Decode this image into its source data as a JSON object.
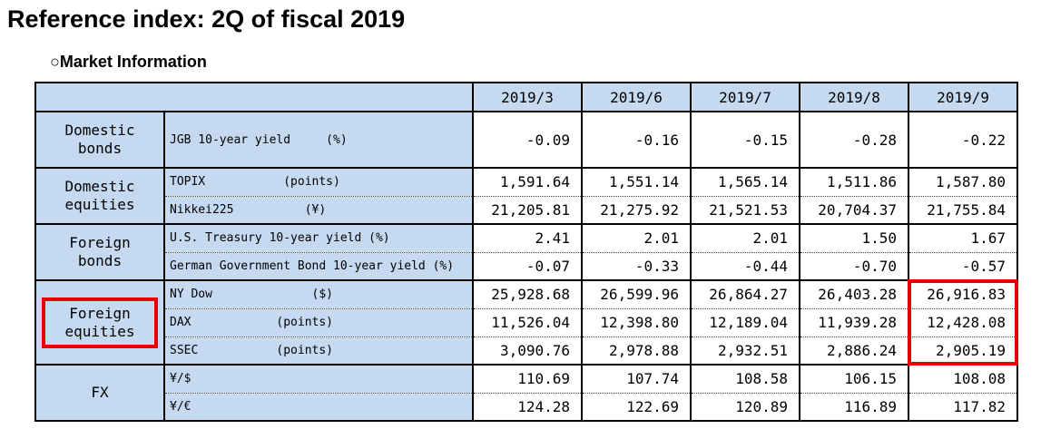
{
  "title": "Reference index: 2Q of fiscal 2019",
  "section": {
    "marker": "○",
    "title": "Market Information"
  },
  "colors": {
    "cell_fill_blue": "#c5d9f1",
    "highlight_red": "#e60000",
    "border_black": "#000000"
  },
  "table": {
    "columns": [
      "2019/3",
      "2019/6",
      "2019/7",
      "2019/8",
      "2019/9"
    ],
    "groups": [
      {
        "category": "Domestic bonds",
        "category_highlighted": false,
        "highlight_last_column": false,
        "rows": [
          {
            "label": "JGB 10-year yield     (%)",
            "tall": true,
            "values": [
              "-0.09",
              "-0.16",
              "-0.15",
              "-0.28",
              "-0.22"
            ]
          }
        ]
      },
      {
        "category": "Domestic equities",
        "category_highlighted": false,
        "highlight_last_column": false,
        "rows": [
          {
            "label": "TOPIX           (points)",
            "values": [
              "1,591.64",
              "1,551.14",
              "1,565.14",
              "1,511.86",
              "1,587.80"
            ]
          },
          {
            "label": "Nikkei225          (¥)",
            "values": [
              "21,205.81",
              "21,275.92",
              "21,521.53",
              "20,704.37",
              "21,755.84"
            ]
          }
        ]
      },
      {
        "category": "Foreign bonds",
        "category_highlighted": false,
        "highlight_last_column": false,
        "rows": [
          {
            "label": "U.S. Treasury 10-year yield (%)",
            "values": [
              "2.41",
              "2.01",
              "2.01",
              "1.50",
              "1.67"
            ]
          },
          {
            "label": "German Government Bond 10-year yield (%)",
            "values": [
              "-0.07",
              "-0.33",
              "-0.44",
              "-0.70",
              "-0.57"
            ]
          }
        ]
      },
      {
        "category": "Foreign equities",
        "category_highlighted": true,
        "highlight_last_column": true,
        "rows": [
          {
            "label": "NY Dow              ($)",
            "values": [
              "25,928.68",
              "26,599.96",
              "26,864.27",
              "26,403.28",
              "26,916.83"
            ]
          },
          {
            "label": "DAX            (points)",
            "values": [
              "11,526.04",
              "12,398.80",
              "12,189.04",
              "11,939.28",
              "12,428.08"
            ]
          },
          {
            "label": "SSEC           (points)",
            "values": [
              "3,090.76",
              "2,978.88",
              "2,932.51",
              "2,886.24",
              "2,905.19"
            ]
          }
        ]
      },
      {
        "category": "FX",
        "category_highlighted": false,
        "highlight_last_column": false,
        "rows": [
          {
            "label": "¥/$",
            "values": [
              "110.69",
              "107.74",
              "108.58",
              "106.15",
              "108.08"
            ]
          },
          {
            "label": "¥/€",
            "values": [
              "124.28",
              "122.69",
              "120.89",
              "116.89",
              "117.82"
            ]
          }
        ]
      }
    ]
  }
}
